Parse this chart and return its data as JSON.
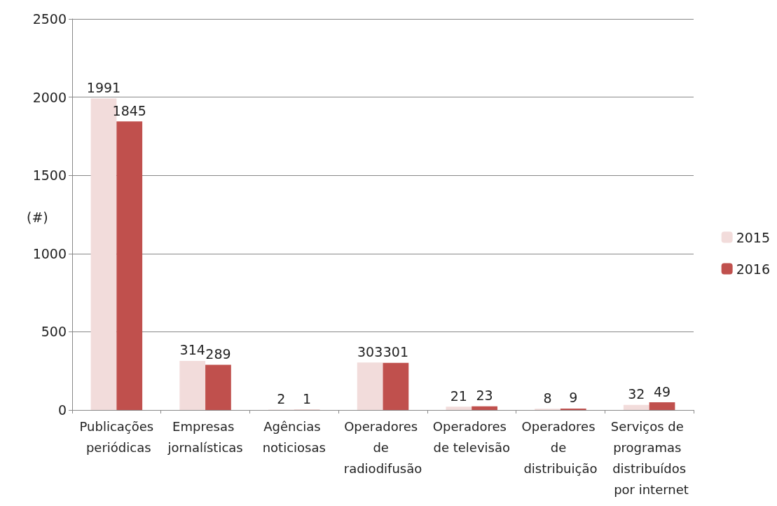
{
  "chart_data": {
    "type": "bar",
    "ylabel": "(#)",
    "categories": [
      "Publicações periódicas",
      "Empresas jornalísticas",
      "Agências noticiosas",
      "Operadores de radiodifusão",
      "Operadores de televisão",
      "Operadores de distribuição",
      "Serviços de programas distribuídos por internet"
    ],
    "series": [
      {
        "name": "2015",
        "color": "#f2dcdb",
        "values": [
          1991,
          314,
          2,
          303,
          21,
          8,
          32
        ]
      },
      {
        "name": "2016",
        "color": "#c0504d",
        "values": [
          1845,
          289,
          1,
          301,
          23,
          9,
          49
        ]
      }
    ],
    "ylim": [
      0,
      2500
    ],
    "yticks": [
      0,
      500,
      1000,
      1500,
      2000,
      2500
    ],
    "grid": "y",
    "legend": "right",
    "data_labels": true
  }
}
